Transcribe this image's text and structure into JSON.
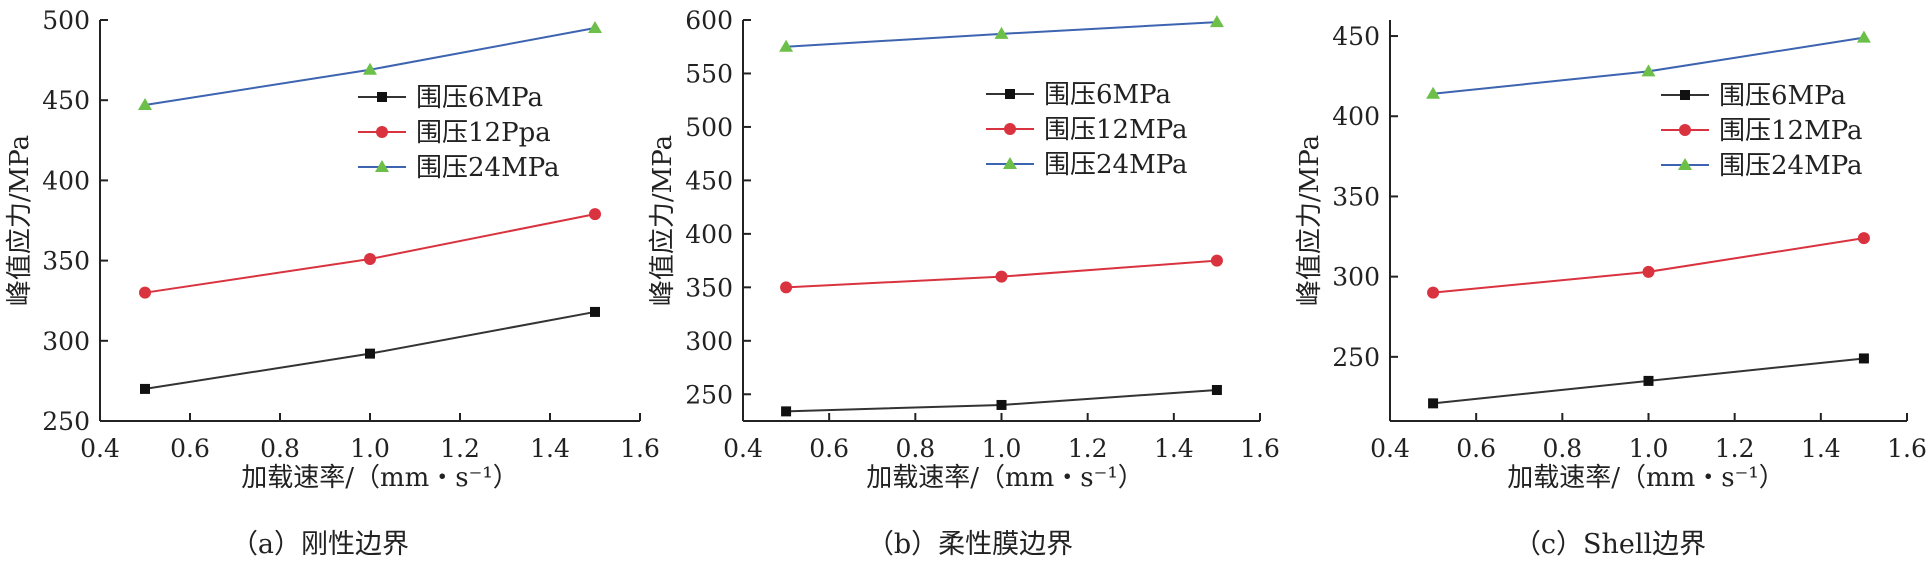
{
  "chart_data": [
    {
      "type": "line",
      "caption": "（a）刚性边界",
      "xlabel": "加载速率/（mm・s⁻¹）",
      "ylabel": "峰值应力/MPa",
      "xlim": [
        0.4,
        1.6
      ],
      "ylim": [
        250,
        500
      ],
      "xticks": [
        "0.4",
        "0.6",
        "0.8",
        "1.0",
        "1.2",
        "1.4",
        "1.6"
      ],
      "yticks": [
        "250",
        "300",
        "350",
        "400",
        "450",
        "500"
      ],
      "x": [
        0.5,
        1.0,
        1.5
      ],
      "legend_position": "upper-right",
      "grid": false,
      "series": [
        {
          "name": "围压6MPa",
          "values": [
            270,
            292,
            318
          ],
          "color": "#333333",
          "marker": "square"
        },
        {
          "name": "围压12Ppa",
          "values": [
            330,
            351,
            379
          ],
          "color": "#d9333f",
          "marker": "circle"
        },
        {
          "name": "围压24MPa",
          "values": [
            447,
            469,
            495
          ],
          "color": "#3d64b0",
          "marker": "triangle"
        }
      ]
    },
    {
      "type": "line",
      "caption": "（b）柔性膜边界",
      "xlabel": "加载速率/（mm・s⁻¹）",
      "ylabel": "峰值应力/MPa",
      "xlim": [
        0.4,
        1.6
      ],
      "ylim": [
        225,
        600
      ],
      "xticks": [
        "0.4",
        "0.6",
        "0.8",
        "1.0",
        "1.2",
        "1.4",
        "1.6"
      ],
      "yticks": [
        "250",
        "300",
        "350",
        "400",
        "450",
        "500",
        "550",
        "600"
      ],
      "x": [
        0.5,
        1.0,
        1.5
      ],
      "legend_position": "upper-right",
      "grid": false,
      "series": [
        {
          "name": "围压6MPa",
          "values": [
            234,
            240,
            254
          ],
          "color": "#333333",
          "marker": "square"
        },
        {
          "name": "围压12MPa",
          "values": [
            350,
            360,
            375
          ],
          "color": "#d9333f",
          "marker": "circle"
        },
        {
          "name": "围压24MPa",
          "values": [
            575,
            587,
            598
          ],
          "color": "#3d64b0",
          "marker": "triangle"
        }
      ]
    },
    {
      "type": "line",
      "caption": "（c）Shell边界",
      "xlabel": "加载速率/（mm・s⁻¹）",
      "ylabel": "峰值应力/MPa",
      "xlim": [
        0.4,
        1.6
      ],
      "ylim": [
        210,
        460
      ],
      "xticks": [
        "0.4",
        "0.6",
        "0.8",
        "1.0",
        "1.2",
        "1.4",
        "1.6"
      ],
      "yticks": [
        "250",
        "300",
        "350",
        "400",
        "450"
      ],
      "x": [
        0.5,
        1.0,
        1.5
      ],
      "legend_position": "upper-right",
      "grid": false,
      "series": [
        {
          "name": "围压6MPa",
          "values": [
            221,
            235,
            249
          ],
          "color": "#333333",
          "marker": "square"
        },
        {
          "name": "围压12MPa",
          "values": [
            290,
            303,
            324
          ],
          "color": "#d9333f",
          "marker": "circle"
        },
        {
          "name": "围压24MPa",
          "values": [
            414,
            428,
            449
          ],
          "color": "#3d64b0",
          "marker": "triangle"
        }
      ]
    }
  ]
}
